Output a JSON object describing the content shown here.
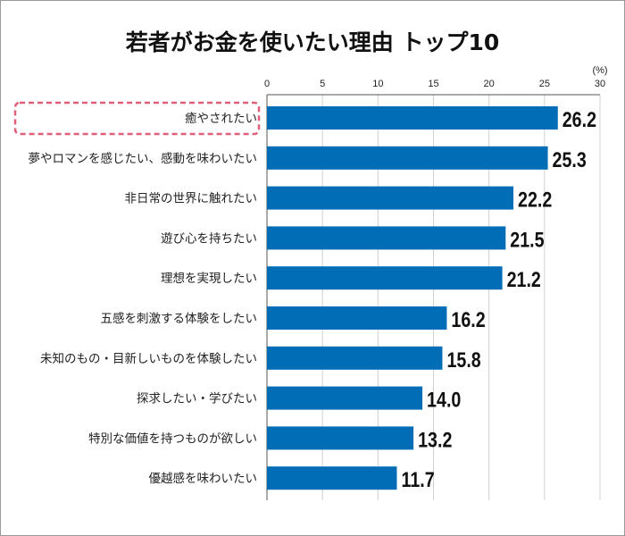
{
  "chart_data": {
    "type": "bar",
    "orientation": "horizontal",
    "title": "若者がお金を使いたい理由 トップ10",
    "unit_label": "(%)",
    "xlim": [
      0,
      30
    ],
    "ticks": [
      0,
      5,
      10,
      15,
      20,
      25,
      30
    ],
    "grid": true,
    "categories": [
      "癒やされたい",
      "夢やロマンを感じたい、感動を味わいたい",
      "非日常の世界に触れたい",
      "遊び心を持ちたい",
      "理想を実現したい",
      "五感を刺激する体験をしたい",
      "未知のもの・目新しいものを体験したい",
      "探求したい・学びたい",
      "特別な価値を持つものが欲しい",
      "優越感を味わいたい"
    ],
    "values": [
      26.2,
      25.3,
      22.2,
      21.5,
      21.2,
      16.2,
      15.8,
      14.0,
      13.2,
      11.7
    ],
    "value_labels": [
      "26.2",
      "25.3",
      "22.2",
      "21.5",
      "21.2",
      "16.2",
      "15.8",
      "14.0",
      "13.2",
      "11.7"
    ],
    "highlighted_category": "癒やされたい",
    "colors": {
      "bar": "#006db6",
      "highlight": "#e0607a",
      "grid": "#d0d0d0"
    }
  }
}
